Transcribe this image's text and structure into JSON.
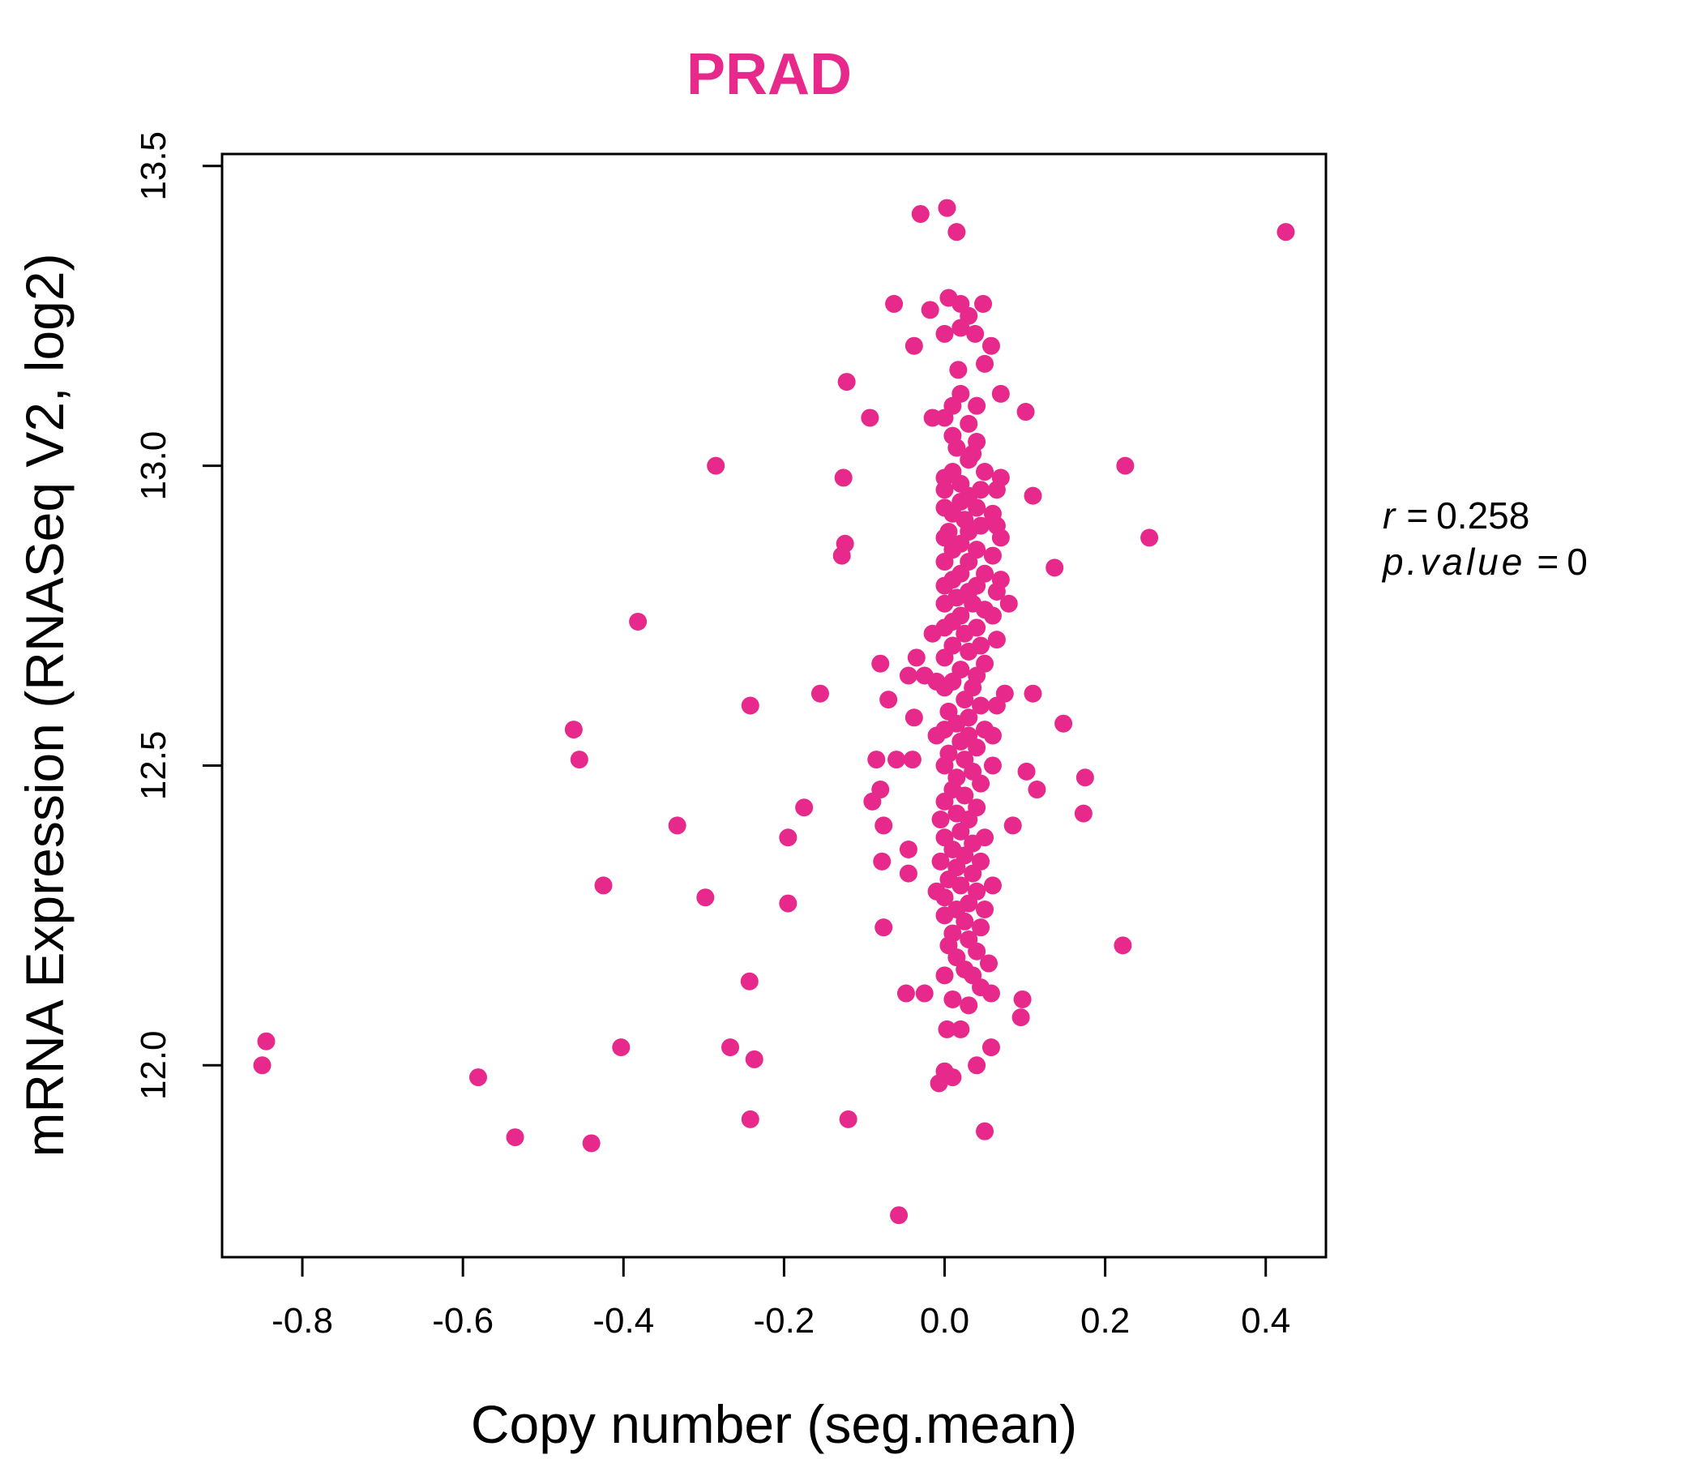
{
  "chart_data": {
    "type": "scatter",
    "title": "PRAD",
    "xlabel": "Copy number (seg.mean)",
    "ylabel": "mRNA Expression (RNASeq V2, log2)",
    "xlim": [
      -0.9,
      0.475
    ],
    "ylim": [
      11.68,
      13.52
    ],
    "xticks": [
      -0.8,
      -0.6,
      -0.4,
      -0.2,
      0.0,
      0.2,
      0.4
    ],
    "xtick_labels": [
      "-0.8",
      "-0.6",
      "-0.4",
      "-0.2",
      "0.0",
      "0.2",
      "0.4"
    ],
    "yticks": [
      12.0,
      12.5,
      13.0,
      13.5
    ],
    "ytick_labels": [
      "12.0",
      "12.5",
      "13.0",
      "13.5"
    ],
    "stats": {
      "r_label": "r",
      "r_value": "0.258",
      "p_label": "p.value",
      "p_value": "0"
    },
    "series": [
      {
        "name": "samples",
        "color": "#E6298B",
        "points": [
          [
            0.003,
            13.43
          ],
          [
            -0.03,
            13.42
          ],
          [
            0.015,
            13.39
          ],
          [
            0.425,
            13.39
          ],
          [
            0.005,
            13.28
          ],
          [
            -0.063,
            13.27
          ],
          [
            0.02,
            13.27
          ],
          [
            0.048,
            13.27
          ],
          [
            -0.018,
            13.26
          ],
          [
            0.03,
            13.25
          ],
          [
            0.0,
            13.22
          ],
          [
            0.02,
            13.23
          ],
          [
            0.038,
            13.22
          ],
          [
            -0.038,
            13.2
          ],
          [
            0.058,
            13.2
          ],
          [
            0.05,
            13.17
          ],
          [
            0.017,
            13.16
          ],
          [
            -0.122,
            13.14
          ],
          [
            0.02,
            13.12
          ],
          [
            0.07,
            13.12
          ],
          [
            0.01,
            13.1
          ],
          [
            0.04,
            13.1
          ],
          [
            -0.093,
            13.08
          ],
          [
            -0.015,
            13.08
          ],
          [
            0.0,
            13.08
          ],
          [
            0.03,
            13.07
          ],
          [
            0.101,
            13.09
          ],
          [
            0.01,
            13.05
          ],
          [
            0.04,
            13.04
          ],
          [
            0.015,
            13.03
          ],
          [
            0.035,
            13.02
          ],
          [
            0.03,
            13.01
          ],
          [
            -0.285,
            13.0
          ],
          [
            0.225,
            13.0
          ],
          [
            0.01,
            12.99
          ],
          [
            0.05,
            12.99
          ],
          [
            -0.126,
            12.98
          ],
          [
            0.0,
            12.98
          ],
          [
            0.02,
            12.97
          ],
          [
            0.07,
            12.98
          ],
          [
            0.045,
            12.96
          ],
          [
            0.0,
            12.96
          ],
          [
            0.03,
            12.95
          ],
          [
            0.065,
            12.96
          ],
          [
            0.11,
            12.95
          ],
          [
            0.02,
            12.94
          ],
          [
            0.04,
            12.93
          ],
          [
            0.0,
            12.93
          ],
          [
            0.01,
            12.92
          ],
          [
            0.06,
            12.92
          ],
          [
            0.025,
            12.91
          ],
          [
            0.045,
            12.9
          ],
          [
            0.065,
            12.9
          ],
          [
            0.005,
            12.89
          ],
          [
            0.03,
            12.89
          ],
          [
            0.07,
            12.88
          ],
          [
            0.255,
            12.88
          ],
          [
            0.0,
            12.88
          ],
          [
            0.02,
            12.87
          ],
          [
            -0.124,
            12.87
          ],
          [
            0.04,
            12.86
          ],
          [
            0.01,
            12.86
          ],
          [
            0.06,
            12.85
          ],
          [
            -0.128,
            12.85
          ],
          [
            0.0,
            12.84
          ],
          [
            0.03,
            12.84
          ],
          [
            0.137,
            12.83
          ],
          [
            0.02,
            12.82
          ],
          [
            0.05,
            12.82
          ],
          [
            0.01,
            12.81
          ],
          [
            0.07,
            12.81
          ],
          [
            0.04,
            12.8
          ],
          [
            0.0,
            12.8
          ],
          [
            0.03,
            12.79
          ],
          [
            0.065,
            12.79
          ],
          [
            0.015,
            12.78
          ],
          [
            0.08,
            12.77
          ],
          [
            0.035,
            12.77
          ],
          [
            0.0,
            12.77
          ],
          [
            0.05,
            12.76
          ],
          [
            0.02,
            12.75
          ],
          [
            0.06,
            12.75
          ],
          [
            0.01,
            12.74
          ],
          [
            -0.382,
            12.74
          ],
          [
            0.04,
            12.73
          ],
          [
            0.0,
            12.73
          ],
          [
            0.025,
            12.72
          ],
          [
            -0.015,
            12.72
          ],
          [
            0.065,
            12.71
          ],
          [
            0.045,
            12.7
          ],
          [
            0.01,
            12.7
          ],
          [
            0.03,
            12.69
          ],
          [
            -0.035,
            12.68
          ],
          [
            0.0,
            12.68
          ],
          [
            0.05,
            12.67
          ],
          [
            -0.08,
            12.67
          ],
          [
            0.02,
            12.66
          ],
          [
            -0.045,
            12.65
          ],
          [
            -0.025,
            12.65
          ],
          [
            0.04,
            12.65
          ],
          [
            0.01,
            12.64
          ],
          [
            -0.01,
            12.64
          ],
          [
            0.035,
            12.63
          ],
          [
            0.0,
            12.63
          ],
          [
            0.075,
            12.62
          ],
          [
            0.11,
            12.62
          ],
          [
            -0.155,
            12.62
          ],
          [
            0.025,
            12.61
          ],
          [
            -0.07,
            12.61
          ],
          [
            0.045,
            12.6
          ],
          [
            0.065,
            12.6
          ],
          [
            -0.242,
            12.6
          ],
          [
            0.005,
            12.59
          ],
          [
            0.03,
            12.58
          ],
          [
            -0.038,
            12.58
          ],
          [
            0.015,
            12.57
          ],
          [
            0.148,
            12.57
          ],
          [
            0.05,
            12.56
          ],
          [
            -0.462,
            12.56
          ],
          [
            0.0,
            12.56
          ],
          [
            0.03,
            12.55
          ],
          [
            -0.01,
            12.55
          ],
          [
            0.06,
            12.55
          ],
          [
            0.02,
            12.54
          ],
          [
            0.04,
            12.53
          ],
          [
            0.005,
            12.52
          ],
          [
            0.025,
            12.51
          ],
          [
            -0.455,
            12.51
          ],
          [
            -0.085,
            12.51
          ],
          [
            -0.06,
            12.51
          ],
          [
            -0.04,
            12.51
          ],
          [
            0.06,
            12.5
          ],
          [
            0.0,
            12.5
          ],
          [
            0.035,
            12.49
          ],
          [
            0.102,
            12.49
          ],
          [
            0.015,
            12.48
          ],
          [
            0.175,
            12.48
          ],
          [
            0.045,
            12.47
          ],
          [
            0.01,
            12.46
          ],
          [
            0.115,
            12.46
          ],
          [
            -0.08,
            12.46
          ],
          [
            0.025,
            12.45
          ],
          [
            -0.09,
            12.44
          ],
          [
            0.0,
            12.44
          ],
          [
            0.04,
            12.43
          ],
          [
            -0.175,
            12.43
          ],
          [
            0.015,
            12.42
          ],
          [
            0.173,
            12.42
          ],
          [
            0.03,
            12.41
          ],
          [
            -0.005,
            12.41
          ],
          [
            -0.333,
            12.4
          ],
          [
            0.085,
            12.4
          ],
          [
            -0.076,
            12.4
          ],
          [
            0.02,
            12.39
          ],
          [
            0.05,
            12.38
          ],
          [
            0.0,
            12.38
          ],
          [
            -0.195,
            12.38
          ],
          [
            0.035,
            12.37
          ],
          [
            0.01,
            12.36
          ],
          [
            -0.045,
            12.36
          ],
          [
            0.025,
            12.35
          ],
          [
            0.045,
            12.34
          ],
          [
            -0.078,
            12.34
          ],
          [
            -0.005,
            12.34
          ],
          [
            0.015,
            12.33
          ],
          [
            -0.045,
            12.32
          ],
          [
            0.035,
            12.32
          ],
          [
            0.005,
            12.31
          ],
          [
            -0.425,
            12.3
          ],
          [
            0.06,
            12.3
          ],
          [
            0.02,
            12.3
          ],
          [
            -0.01,
            12.29
          ],
          [
            0.04,
            12.29
          ],
          [
            -0.298,
            12.28
          ],
          [
            0.0,
            12.28
          ],
          [
            0.03,
            12.27
          ],
          [
            -0.195,
            12.27
          ],
          [
            0.015,
            12.26
          ],
          [
            0.05,
            12.26
          ],
          [
            0.0,
            12.25
          ],
          [
            0.025,
            12.24
          ],
          [
            0.045,
            12.23
          ],
          [
            -0.076,
            12.23
          ],
          [
            0.01,
            12.22
          ],
          [
            0.03,
            12.21
          ],
          [
            0.222,
            12.2
          ],
          [
            0.005,
            12.2
          ],
          [
            0.04,
            12.19
          ],
          [
            0.015,
            12.18
          ],
          [
            0.055,
            12.17
          ],
          [
            0.025,
            12.16
          ],
          [
            0.0,
            12.15
          ],
          [
            0.035,
            12.15
          ],
          [
            -0.243,
            12.14
          ],
          [
            0.045,
            12.13
          ],
          [
            -0.048,
            12.12
          ],
          [
            -0.025,
            12.12
          ],
          [
            0.058,
            12.12
          ],
          [
            0.01,
            12.11
          ],
          [
            0.097,
            12.11
          ],
          [
            0.03,
            12.1
          ],
          [
            0.095,
            12.08
          ],
          [
            0.003,
            12.06
          ],
          [
            0.02,
            12.06
          ],
          [
            0.058,
            12.03
          ],
          [
            -0.845,
            12.04
          ],
          [
            -0.403,
            12.03
          ],
          [
            -0.267,
            12.03
          ],
          [
            -0.237,
            12.01
          ],
          [
            0.04,
            12.0
          ],
          [
            -0.85,
            12.0
          ],
          [
            0.0,
            11.99
          ],
          [
            0.01,
            11.98
          ],
          [
            -0.581,
            11.98
          ],
          [
            -0.007,
            11.97
          ],
          [
            -0.242,
            11.91
          ],
          [
            -0.12,
            11.91
          ],
          [
            -0.535,
            11.88
          ],
          [
            0.05,
            11.89
          ],
          [
            -0.44,
            11.87
          ],
          [
            -0.057,
            11.75
          ]
        ]
      }
    ]
  }
}
